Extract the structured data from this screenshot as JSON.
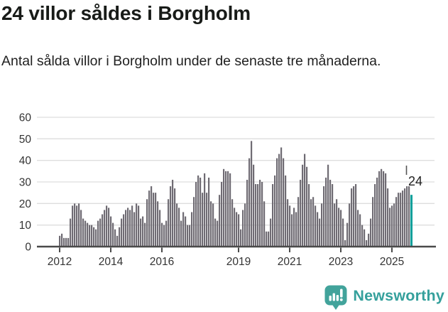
{
  "page": {
    "background": "#ffffff"
  },
  "header": {
    "title": "24 villor såldes i Borgholm",
    "subtitle": "Antal sålda villor i Borgholm under de senaste tre månaderna."
  },
  "chart_data": {
    "type": "bar",
    "title": "24 villor såldes i Borgholm",
    "xlabel": "",
    "ylabel": "",
    "ylim": [
      0,
      60
    ],
    "grid": true,
    "legend": false,
    "y_ticks": [
      0,
      10,
      20,
      30,
      40,
      50,
      60
    ],
    "x_ticks": [
      {
        "label": "2012",
        "index": 0
      },
      {
        "label": "2014",
        "index": 24
      },
      {
        "label": "2016",
        "index": 48
      },
      {
        "label": "2019",
        "index": 84
      },
      {
        "label": "2021",
        "index": 108
      },
      {
        "label": "2023",
        "index": 132
      },
      {
        "label": "2025",
        "index": 156
      }
    ],
    "values": [
      5,
      6,
      4,
      4,
      4,
      13,
      19,
      20,
      19,
      20,
      17,
      13,
      12,
      11,
      10,
      10,
      9,
      8,
      12,
      13,
      15,
      17,
      19,
      18,
      14,
      11,
      8,
      5,
      9,
      13,
      15,
      17,
      18,
      17,
      19,
      16,
      20,
      19,
      13,
      14,
      11,
      22,
      26,
      28,
      25,
      25,
      21,
      17,
      11,
      10,
      12,
      22,
      28,
      31,
      27,
      20,
      18,
      12,
      16,
      14,
      10,
      10,
      16,
      23,
      30,
      33,
      32,
      25,
      34,
      25,
      32,
      21,
      20,
      13,
      12,
      24,
      30,
      36,
      35,
      35,
      34,
      22,
      18,
      16,
      15,
      8,
      17,
      20,
      31,
      41,
      49,
      38,
      29,
      29,
      31,
      30,
      21,
      7,
      7,
      13,
      29,
      33,
      41,
      43,
      46,
      41,
      33,
      22,
      19,
      15,
      18,
      16,
      23,
      31,
      38,
      43,
      37,
      29,
      22,
      23,
      19,
      16,
      13,
      20,
      28,
      32,
      38,
      31,
      29,
      20,
      22,
      18,
      17,
      13,
      3,
      11,
      20,
      27,
      28,
      29,
      17,
      15,
      10,
      8,
      3,
      6,
      13,
      23,
      29,
      32,
      35,
      36,
      35,
      34,
      27,
      18,
      19,
      20,
      23,
      25,
      25,
      26,
      27,
      28,
      28,
      24
    ],
    "highlight": {
      "index": 165,
      "value": 24,
      "label": "24"
    },
    "colors": {
      "bar": "#6F6B73",
      "highlight": "#0BA09B",
      "grid": "#DEDEDE",
      "axis": "#4A4A4A",
      "tick_label": "#333333",
      "annotation": "#222222"
    }
  },
  "footer": {
    "brand": "Newsworthy",
    "brand_color": "#35A09C",
    "icon_color": "#42A39B",
    "icon": "newsworthy-chart-bubble"
  }
}
